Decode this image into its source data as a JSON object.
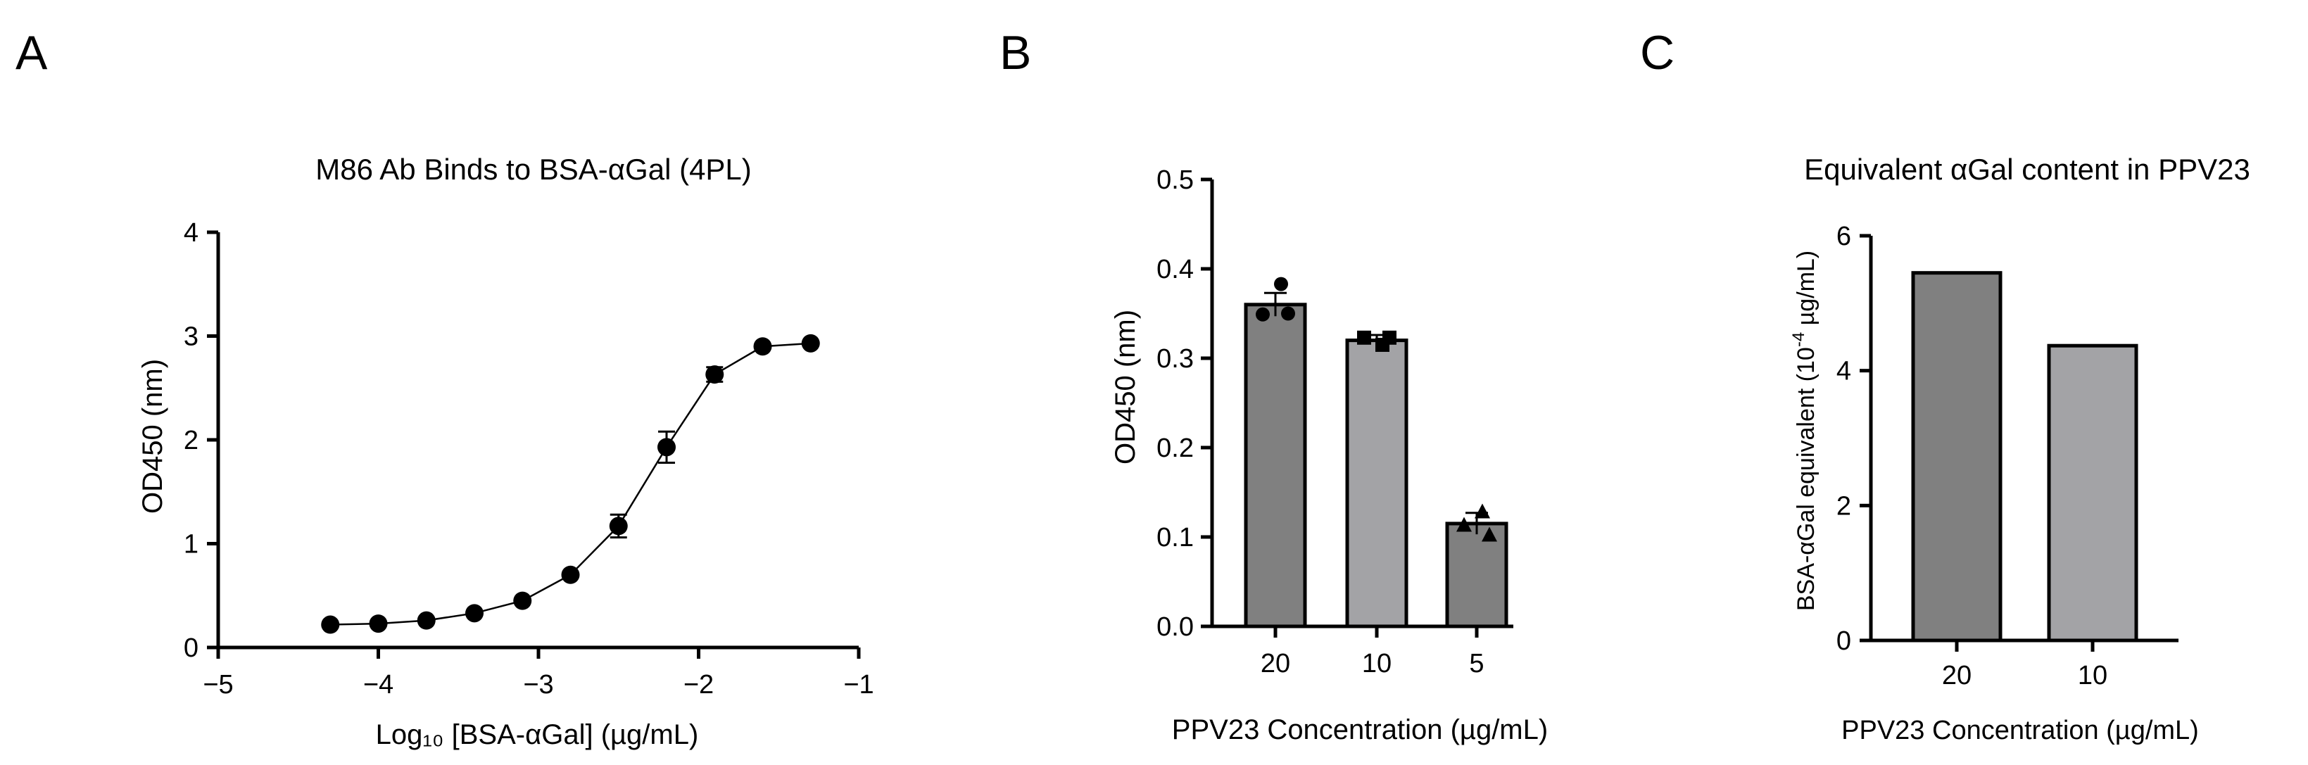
{
  "panels": [
    {
      "letter": "A"
    },
    {
      "letter": "B"
    },
    {
      "letter": "C"
    }
  ],
  "colors": {
    "dark_bar": "#808080",
    "light_bar": "#a3a3a6",
    "ink": "#000000"
  },
  "chart_data": [
    {
      "type": "scatter",
      "title": "M86 Ab Binds to BSA-αGal (4PL)",
      "xlabel": "Log₁₀ [BSA-αGal] (µg/mL)",
      "ylabel": "OD450 (nm)",
      "xlim": [
        -5,
        -1
      ],
      "ylim": [
        0,
        4
      ],
      "xticks": [
        -5,
        -4,
        -3,
        -2,
        -1
      ],
      "xtick_labels": [
        "−5",
        "−4",
        "−3",
        "−2",
        "−1"
      ],
      "yticks": [
        0,
        1,
        2,
        3,
        4
      ],
      "ytick_labels": [
        "0",
        "1",
        "2",
        "3",
        "4"
      ],
      "fit": "4PL curve",
      "x": [
        -4.3,
        -4.0,
        -3.7,
        -3.4,
        -3.1,
        -2.8,
        -2.5,
        -2.2,
        -1.9,
        -1.6,
        -1.3
      ],
      "y": [
        0.22,
        0.23,
        0.26,
        0.33,
        0.45,
        0.7,
        1.17,
        1.93,
        2.63,
        2.9,
        2.93
      ],
      "err": [
        0.0,
        0.0,
        0.0,
        0.0,
        0.0,
        0.0,
        0.11,
        0.15,
        0.07,
        0.0,
        0.0
      ]
    },
    {
      "type": "bar",
      "title": "",
      "xlabel": "PPV23 Concentration (µg/mL)",
      "ylabel": "OD450 (nm)",
      "ylim": [
        0,
        0.5
      ],
      "yticks": [
        0,
        0.1,
        0.2,
        0.3,
        0.4,
        0.5
      ],
      "ytick_labels": [
        "0.0",
        "0.1",
        "0.2",
        "0.3",
        "0.4",
        "0.5"
      ],
      "categories": [
        "20",
        "10",
        "5"
      ],
      "values": [
        0.36,
        0.32,
        0.115
      ],
      "sem": [
        0.013,
        0.006,
        0.012
      ],
      "bar_colors": [
        "#808080",
        "#a3a3a6",
        "#808080"
      ],
      "markers": [
        "circle",
        "square",
        "triangle"
      ],
      "points": [
        [
          0.383,
          0.349,
          0.35
        ],
        [
          0.315,
          0.323,
          0.323
        ],
        [
          0.128,
          0.113,
          0.102
        ]
      ]
    },
    {
      "type": "bar",
      "title": "Equivalent αGal content in PPV23",
      "xlabel": "PPV23 Concentration (µg/mL)",
      "ylabel_main": "BSA-αGal equivalent (10",
      "ylabel_sup": "-4",
      "ylabel_tail": " µg/mL)",
      "ylim": [
        0,
        6
      ],
      "yticks": [
        0,
        2,
        4,
        6
      ],
      "ytick_labels": [
        "0",
        "2",
        "4",
        "6"
      ],
      "categories": [
        "20",
        "10"
      ],
      "values": [
        5.45,
        4.37
      ],
      "bar_colors": [
        "#808080",
        "#a3a3a6"
      ]
    }
  ]
}
